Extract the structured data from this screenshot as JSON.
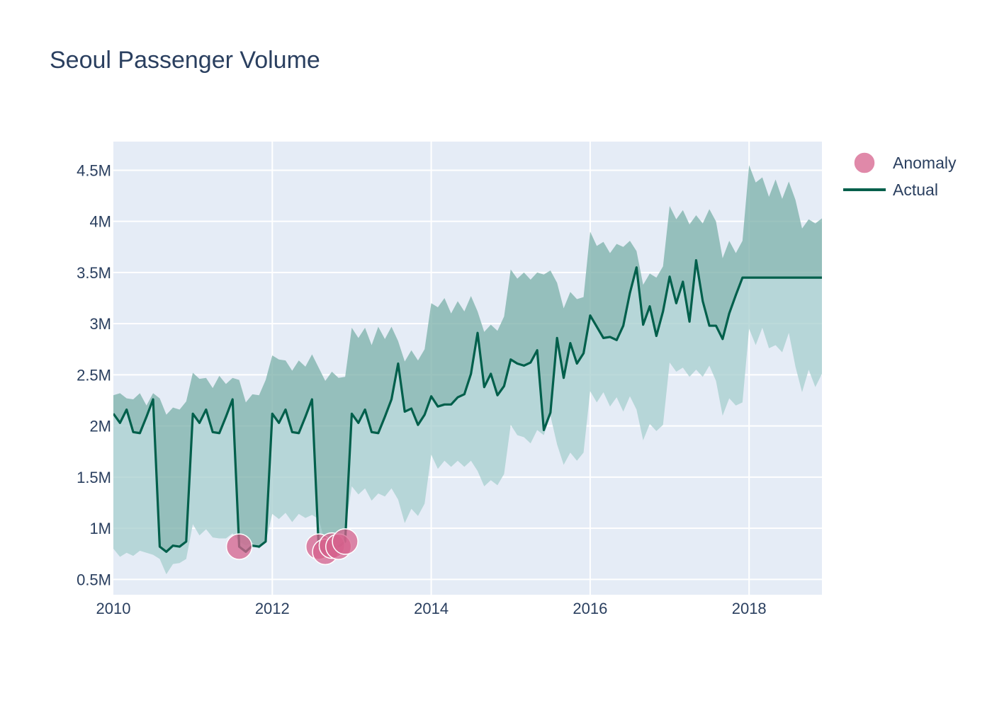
{
  "chart_data": {
    "type": "line",
    "title": "Seoul Passenger Volume",
    "xlabel": "",
    "ylabel": "",
    "x_start": "2010-01",
    "x_end": "2018-12",
    "xlim": [
      "2010-01",
      "2018-12"
    ],
    "ylim": [
      0.35,
      4.78
    ],
    "y_unit": "M",
    "x_ticks": [
      {
        "date": "2010-01",
        "label": "2010"
      },
      {
        "date": "2012-01",
        "label": "2012"
      },
      {
        "date": "2014-01",
        "label": "2014"
      },
      {
        "date": "2016-01",
        "label": "2016"
      },
      {
        "date": "2018-01",
        "label": "2018"
      }
    ],
    "y_ticks": [
      {
        "value": 0.5,
        "label": "0.5M"
      },
      {
        "value": 1.0,
        "label": "1M"
      },
      {
        "value": 1.5,
        "label": "1.5M"
      },
      {
        "value": 2.0,
        "label": "2M"
      },
      {
        "value": 2.5,
        "label": "2.5M"
      },
      {
        "value": 3.0,
        "label": "3M"
      },
      {
        "value": 3.5,
        "label": "3.5M"
      },
      {
        "value": 4.0,
        "label": "4M"
      },
      {
        "value": 4.5,
        "label": "4.5M"
      }
    ],
    "grid": true,
    "legend_position": "top-right",
    "colors": {
      "plot_bg": "#e5ecf6",
      "grid": "#ffffff",
      "actual_line": "#005f4b",
      "band_upper": "#7fb2ac",
      "band_lower": "#a9cfcf",
      "anomaly": "#d6628c"
    },
    "series": [
      {
        "name": "Actual",
        "kind": "line",
        "values": [
          2.12,
          2.03,
          2.16,
          1.94,
          1.93,
          2.09,
          2.26,
          0.82,
          0.77,
          0.83,
          0.82,
          0.87,
          2.12,
          2.03,
          2.16,
          1.94,
          1.93,
          2.09,
          2.26,
          0.82,
          0.77,
          0.83,
          0.82,
          0.87,
          2.12,
          2.03,
          2.16,
          1.94,
          1.93,
          2.09,
          2.26,
          0.82,
          0.77,
          0.83,
          0.82,
          0.87,
          2.12,
          2.03,
          2.16,
          1.94,
          1.93,
          2.09,
          2.26,
          2.61,
          2.14,
          2.17,
          2.01,
          2.11,
          2.29,
          2.19,
          2.21,
          2.21,
          2.28,
          2.31,
          2.51,
          2.91,
          2.38,
          2.51,
          2.3,
          2.39,
          2.65,
          2.61,
          2.59,
          2.62,
          2.74,
          1.96,
          2.13,
          2.86,
          2.47,
          2.81,
          2.61,
          2.71,
          3.08,
          2.97,
          2.86,
          2.87,
          2.84,
          2.98,
          3.3,
          3.55,
          2.99,
          3.17,
          2.88,
          3.12,
          3.46,
          3.2,
          3.41,
          3.02,
          3.62,
          3.22,
          2.98,
          2.98,
          2.85,
          3.1,
          3.28,
          3.45,
          3.45,
          3.45,
          3.45,
          3.45,
          3.45,
          3.45,
          3.45,
          3.45,
          3.45,
          3.45,
          3.45,
          3.45
        ]
      },
      {
        "name": "",
        "kind": "band-upper",
        "values": [
          2.3,
          2.32,
          2.27,
          2.26,
          2.32,
          2.2,
          2.32,
          2.27,
          2.11,
          2.18,
          2.16,
          2.24,
          2.52,
          2.46,
          2.47,
          2.37,
          2.49,
          2.41,
          2.47,
          2.45,
          2.23,
          2.31,
          2.3,
          2.45,
          2.69,
          2.65,
          2.64,
          2.54,
          2.64,
          2.58,
          2.7,
          2.57,
          2.44,
          2.53,
          2.47,
          2.48,
          2.96,
          2.86,
          2.96,
          2.79,
          2.97,
          2.85,
          2.97,
          2.83,
          2.63,
          2.74,
          2.64,
          2.75,
          3.2,
          3.16,
          3.25,
          3.1,
          3.22,
          3.12,
          3.27,
          3.12,
          2.92,
          2.99,
          2.93,
          3.07,
          3.53,
          3.44,
          3.5,
          3.43,
          3.5,
          3.48,
          3.52,
          3.4,
          3.15,
          3.31,
          3.24,
          3.26,
          3.9,
          3.76,
          3.8,
          3.69,
          3.78,
          3.75,
          3.81,
          3.71,
          3.38,
          3.49,
          3.45,
          3.56,
          4.15,
          4.02,
          4.11,
          3.97,
          4.06,
          3.98,
          4.12,
          4.0,
          3.64,
          3.81,
          3.69,
          3.81,
          4.55,
          4.38,
          4.43,
          4.24,
          4.41,
          4.22,
          4.39,
          4.21,
          3.93,
          4.02,
          3.98,
          4.03
        ]
      },
      {
        "name": "",
        "kind": "band-lower",
        "values": [
          0.8,
          0.72,
          0.76,
          0.73,
          0.78,
          0.76,
          0.74,
          0.7,
          0.55,
          0.65,
          0.66,
          0.7,
          1.04,
          0.93,
          0.99,
          0.91,
          0.9,
          0.9,
          0.95,
          0.87,
          0.83,
          0.86,
          0.8,
          0.87,
          1.14,
          1.09,
          1.15,
          1.06,
          1.14,
          1.1,
          1.13,
          1.09,
          0.86,
          0.94,
          0.92,
          0.99,
          1.41,
          1.33,
          1.39,
          1.27,
          1.34,
          1.31,
          1.39,
          1.28,
          1.05,
          1.19,
          1.12,
          1.24,
          1.72,
          1.58,
          1.66,
          1.6,
          1.66,
          1.6,
          1.66,
          1.56,
          1.41,
          1.47,
          1.42,
          1.53,
          2.01,
          1.91,
          1.89,
          1.83,
          1.96,
          1.91,
          2.1,
          1.82,
          1.62,
          1.74,
          1.66,
          1.74,
          2.34,
          2.23,
          2.33,
          2.19,
          2.28,
          2.14,
          2.29,
          2.16,
          1.86,
          2.02,
          1.95,
          2.01,
          2.62,
          2.53,
          2.57,
          2.48,
          2.55,
          2.48,
          2.59,
          2.44,
          2.1,
          2.27,
          2.2,
          2.23,
          2.95,
          2.79,
          2.96,
          2.76,
          2.79,
          2.72,
          2.91,
          2.58,
          2.33,
          2.55,
          2.38,
          2.51
        ]
      },
      {
        "name": "Anomaly",
        "kind": "markers",
        "points": [
          {
            "x": "2011-08",
            "y": 0.82
          },
          {
            "x": "2012-08",
            "y": 0.82
          },
          {
            "x": "2012-09",
            "y": 0.77
          },
          {
            "x": "2012-10",
            "y": 0.83
          },
          {
            "x": "2012-11",
            "y": 0.82
          },
          {
            "x": "2012-12",
            "y": 0.87
          }
        ]
      }
    ]
  },
  "legend": {
    "items": [
      {
        "label": "Anomaly",
        "symbol": "circle",
        "color": "#d6628c"
      },
      {
        "label": "Actual",
        "symbol": "line",
        "color": "#005f4b"
      }
    ]
  }
}
